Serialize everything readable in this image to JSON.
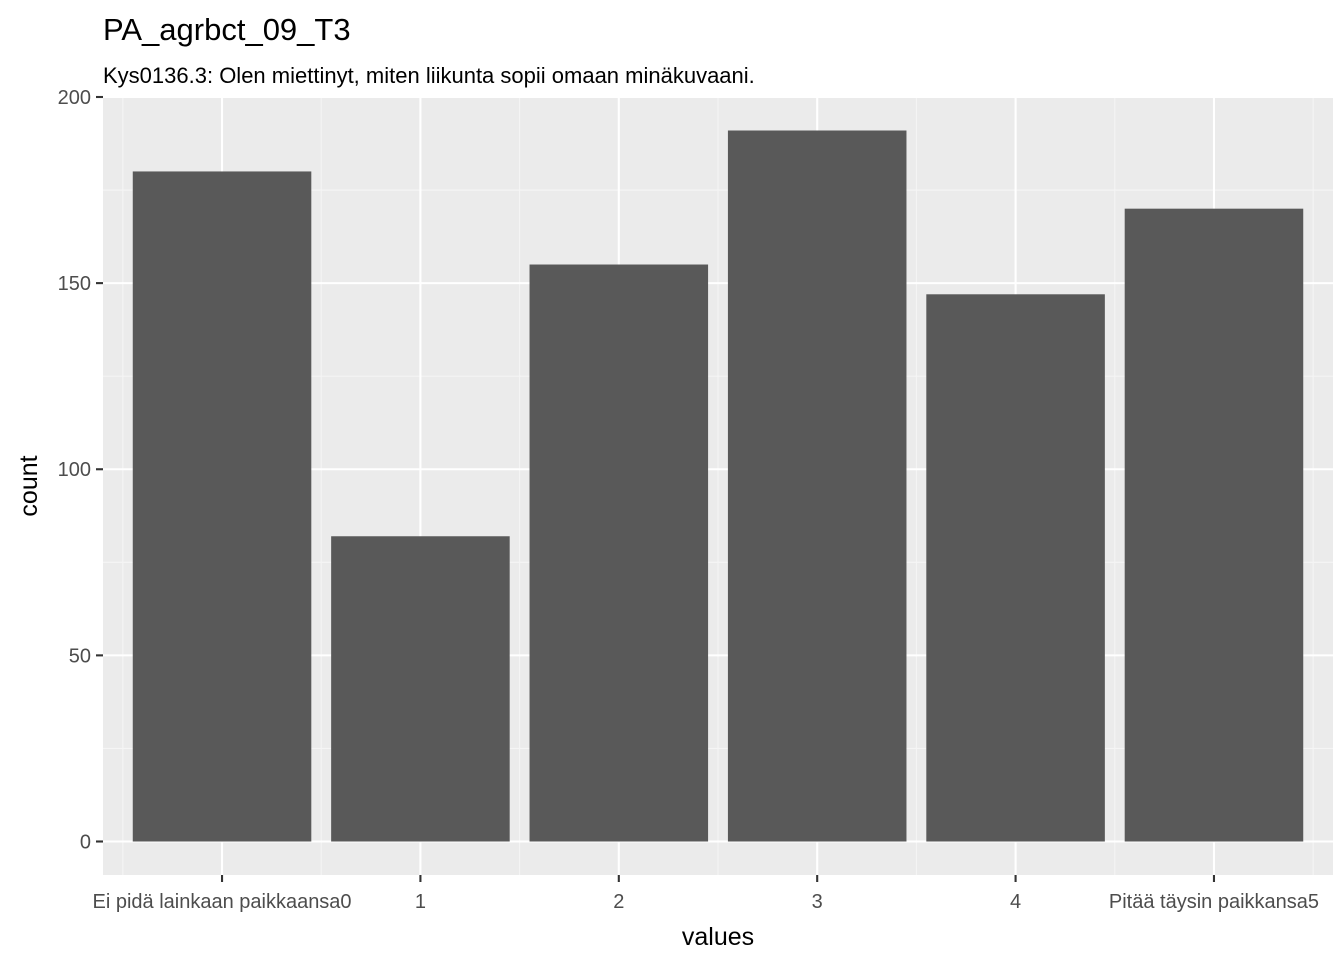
{
  "colors": {
    "panel_background": "#ebebeb",
    "grid_major": "#ffffff",
    "grid_minor": "#f5f5f5",
    "bar_fill": "#595959",
    "tick_color": "#333333",
    "tick_label": "#4d4d4d",
    "text": "#000000"
  },
  "chart_data": {
    "type": "bar",
    "title": "PA_agrbct_09_T3",
    "subtitle": "Kys0136.3: Olen miettinyt, miten liikunta sopii omaan minäkuvaani.",
    "xlabel": "values",
    "ylabel": "count",
    "categories": [
      "Ei pidä lainkaan paikkaansa0",
      "1",
      "2",
      "3",
      "4",
      "Pitää täysin paikkansa5"
    ],
    "values": [
      180,
      82,
      155,
      191,
      147,
      170
    ],
    "ylim": [
      -9,
      200
    ],
    "yticks": [
      0,
      50,
      100,
      150,
      200
    ],
    "grid": true,
    "legend": "none"
  }
}
